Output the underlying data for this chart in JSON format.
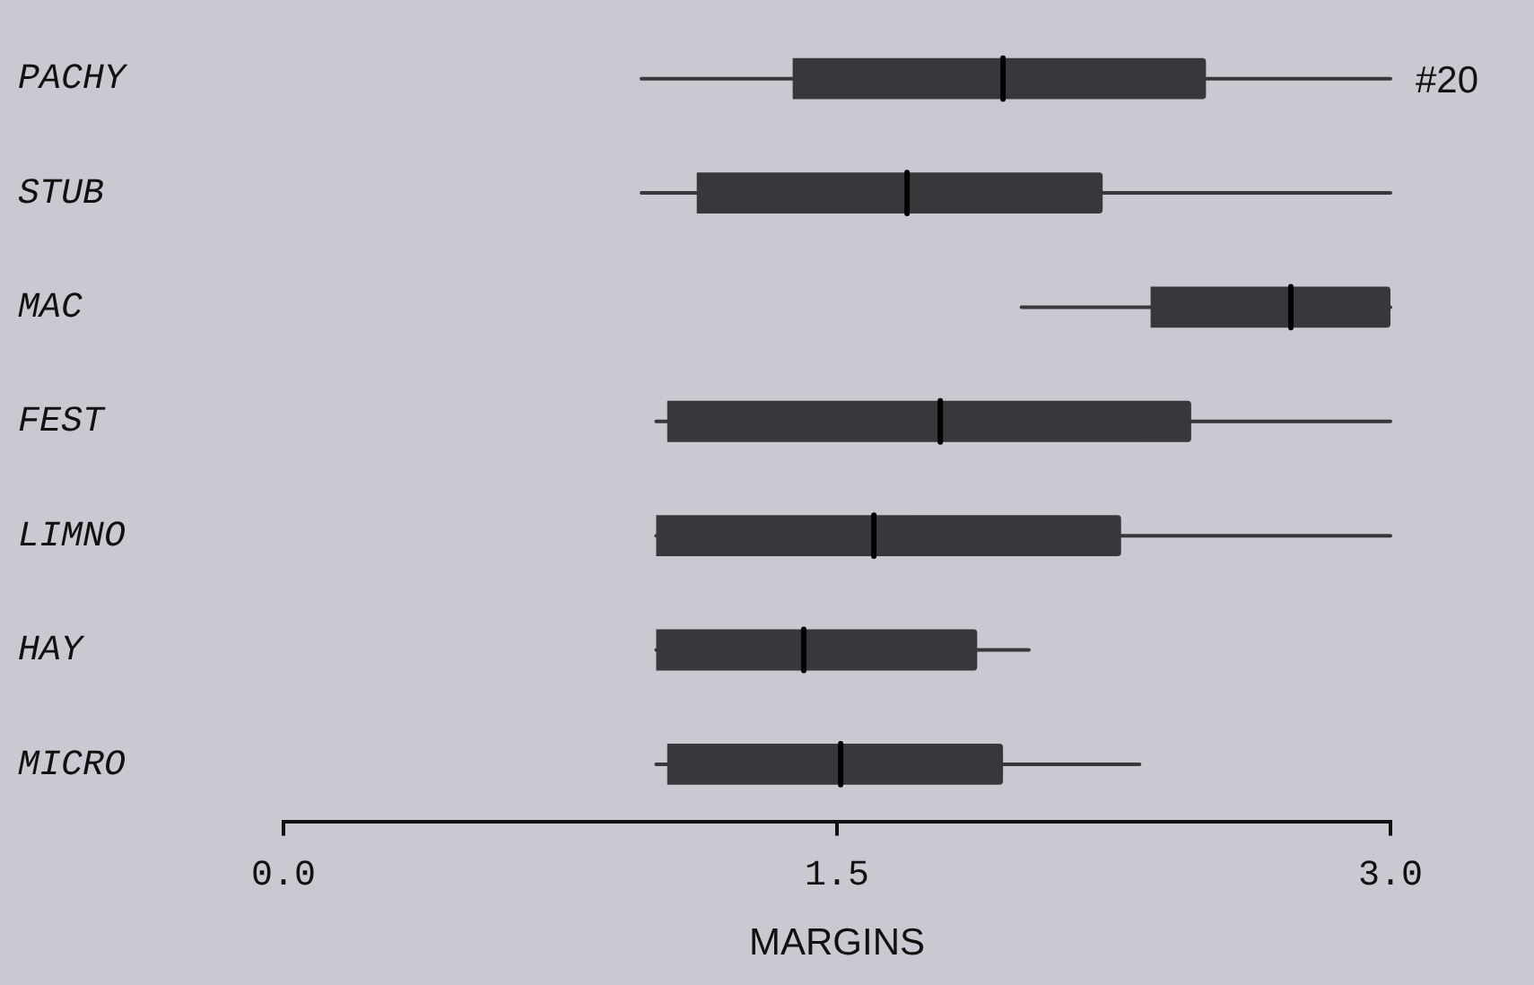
{
  "chart_data": {
    "type": "box",
    "orientation": "horizontal",
    "xlabel": "MARGINS",
    "categories": [
      "PACHY",
      "STUB",
      "MAC",
      "FEST",
      "LIMNO",
      "HAY",
      "MICRO"
    ],
    "boxes": [
      {
        "low": 0.97,
        "q1": 1.38,
        "median": 1.95,
        "q3": 2.5,
        "high": 3.0
      },
      {
        "low": 0.97,
        "q1": 1.12,
        "median": 1.69,
        "q3": 2.22,
        "high": 3.0
      },
      {
        "low": 2.0,
        "q1": 2.35,
        "median": 2.73,
        "q3": 3.0,
        "high": 3.0
      },
      {
        "low": 1.01,
        "q1": 1.04,
        "median": 1.78,
        "q3": 2.46,
        "high": 3.0
      },
      {
        "low": 1.01,
        "q1": 1.01,
        "median": 1.6,
        "q3": 2.27,
        "high": 3.0
      },
      {
        "low": 1.01,
        "q1": 1.01,
        "median": 1.41,
        "q3": 1.88,
        "high": 2.02
      },
      {
        "low": 1.01,
        "q1": 1.04,
        "median": 1.51,
        "q3": 1.95,
        "high": 2.32
      }
    ],
    "color": "#38383c",
    "xlim": [
      0,
      3
    ],
    "xticks": [
      {
        "value": 0,
        "label": "0.0"
      },
      {
        "value": 1.5,
        "label": "1.5"
      },
      {
        "value": 3,
        "label": "3.0"
      }
    ],
    "grid": false,
    "legend": false,
    "annotations": [
      "#20"
    ]
  }
}
